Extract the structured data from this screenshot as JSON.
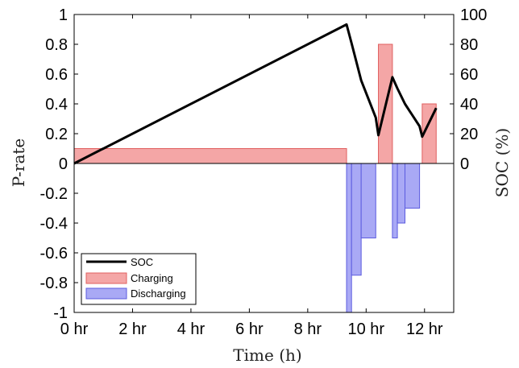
{
  "chart_data": {
    "type": "bar",
    "xlabel": "Time (h)",
    "ylabel_left": "P-rate",
    "ylabel_right": "SOC (%)",
    "xlim": [
      0,
      13
    ],
    "ylim_left": [
      -1,
      1
    ],
    "ylim_right": [
      -100,
      100
    ],
    "x_ticks": [
      0,
      2,
      4,
      6,
      8,
      10,
      12
    ],
    "x_tick_labels": [
      "0 hr",
      "2 hr",
      "4 hr",
      "6 hr",
      "8 hr",
      "10 hr",
      "12 hr"
    ],
    "y_left_ticks": [
      -1,
      -0.8,
      -0.6,
      -0.4,
      -0.2,
      0,
      0.2,
      0.4,
      0.6,
      0.8,
      1
    ],
    "y_left_tick_labels": [
      "-1",
      "-0.8",
      "-0.6",
      "-0.4",
      "-0.2",
      "0",
      "0.2",
      "0.4",
      "0.6",
      "0.8",
      "1"
    ],
    "y_right_ticks": [
      0,
      20,
      40,
      60,
      80,
      100
    ],
    "y_right_tick_labels": [
      "0",
      "20",
      "40",
      "60",
      "80",
      "100"
    ],
    "legend": {
      "placement": "bottom-left",
      "entries": [
        "SOC",
        "Charging",
        "Discharging"
      ]
    },
    "charging": {
      "name": "Charging",
      "color": "#f4a6a6",
      "edge": "#e06060",
      "bars": [
        {
          "start": 0,
          "end": 9.33,
          "value": 0.1
        },
        {
          "start": 10.42,
          "end": 10.9,
          "value": 0.8
        },
        {
          "start": 11.92,
          "end": 12.4,
          "value": 0.4
        }
      ]
    },
    "discharging": {
      "name": "Discharging",
      "color": "#a9a9f5",
      "edge": "#5c5cdf",
      "bars": [
        {
          "start": 9.33,
          "end": 9.5,
          "value": -1.0
        },
        {
          "start": 9.5,
          "end": 9.83,
          "value": -0.75
        },
        {
          "start": 9.83,
          "end": 10.33,
          "value": -0.5
        },
        {
          "start": 10.9,
          "end": 11.07,
          "value": -0.5
        },
        {
          "start": 11.07,
          "end": 11.33,
          "value": -0.4
        },
        {
          "start": 11.33,
          "end": 11.83,
          "value": -0.3
        }
      ]
    },
    "soc": {
      "name": "SOC",
      "color": "#000000",
      "x": [
        0,
        9.33,
        9.5,
        9.83,
        10.33,
        10.42,
        10.9,
        11.07,
        11.33,
        11.83,
        11.92,
        12.4
      ],
      "y": [
        0,
        93.3,
        80.8,
        55.8,
        30.8,
        19,
        57.9,
        50.4,
        40,
        25,
        18,
        37.2
      ]
    }
  }
}
